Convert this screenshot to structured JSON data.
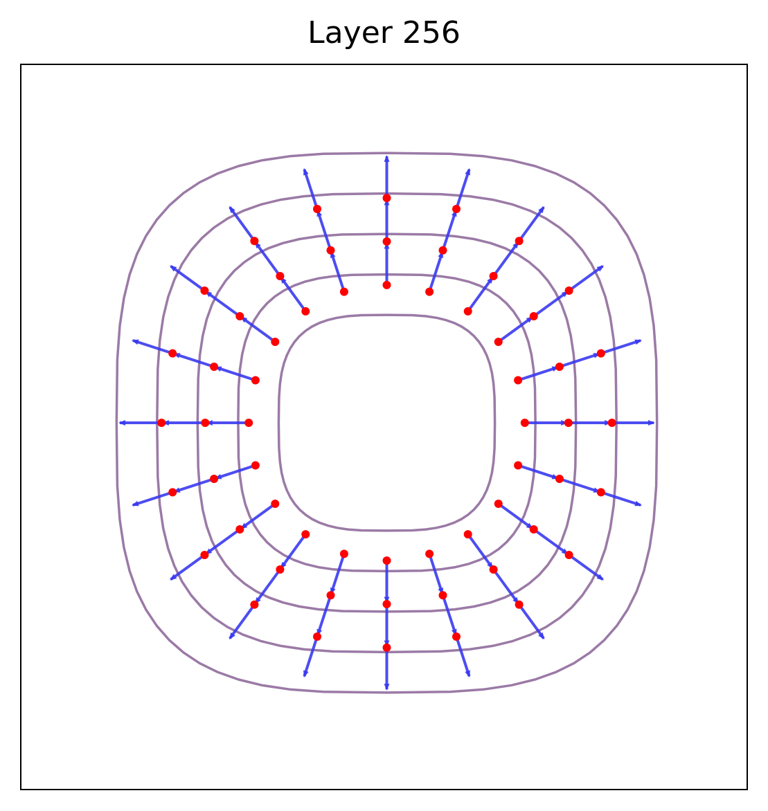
{
  "chart_data": {
    "type": "quiver",
    "title": "Layer 256",
    "xlabel": "",
    "ylabel": "",
    "xlim": [
      -1,
      1
    ],
    "ylim": [
      -1,
      1
    ],
    "axes_ticks": "none",
    "grid": false,
    "contour_color": "#9b7aa6",
    "arrow_color": "#3a3af0",
    "point_color": "#ff0000",
    "contours": [
      {
        "name": "",
        "radius": 0.32
      },
      {
        "name": "",
        "radius": 0.44
      },
      {
        "name": "",
        "radius": 0.56
      },
      {
        "name": "",
        "radius": 0.68
      },
      {
        "name": "",
        "radius": 0.8
      }
    ],
    "directions_count": 20,
    "angle_step_deg": 18,
    "angle_offset_deg": 0,
    "point_radii": [
      0.38,
      0.5,
      0.62
    ],
    "arrow_lengths": [
      0.115,
      0.115,
      0.115
    ]
  }
}
